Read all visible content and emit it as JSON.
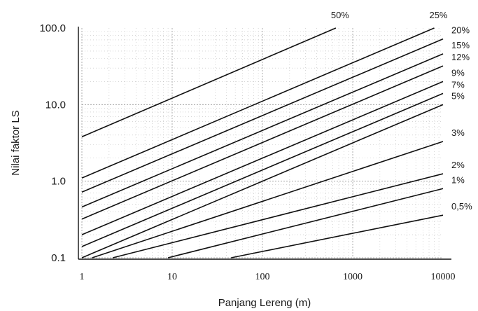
{
  "chart_data": {
    "type": "line",
    "xlabel": "Panjang Lereng (m)",
    "ylabel": "Nilai faktor LS",
    "x_scale": "log",
    "y_scale": "log",
    "xlim": [
      1,
      10000
    ],
    "ylim": [
      0.1,
      100
    ],
    "x_ticks": [
      "1",
      "10",
      "100",
      "1000",
      "10000"
    ],
    "y_ticks": [
      "0.1",
      "1.0",
      "10.0",
      "100.0"
    ],
    "grid": true,
    "series": [
      {
        "name": "50%",
        "x": [
          1,
          650
        ],
        "y": [
          3.8,
          100
        ]
      },
      {
        "name": "25%",
        "x": [
          1,
          8000
        ],
        "y": [
          1.1,
          100
        ]
      },
      {
        "name": "20%",
        "x": [
          1,
          10000
        ],
        "y": [
          0.72,
          72
        ]
      },
      {
        "name": "15%",
        "x": [
          1,
          10000
        ],
        "y": [
          0.46,
          46
        ]
      },
      {
        "name": "12%",
        "x": [
          1,
          10000
        ],
        "y": [
          0.32,
          32
        ]
      },
      {
        "name": "9%",
        "x": [
          1,
          10000
        ],
        "y": [
          0.2,
          20
        ]
      },
      {
        "name": "7%",
        "x": [
          1,
          10000
        ],
        "y": [
          0.14,
          14
        ]
      },
      {
        "name": "5%",
        "x": [
          1,
          10000
        ],
        "y": [
          0.1,
          10
        ]
      },
      {
        "name": "3%",
        "x": [
          1.3,
          10000
        ],
        "y": [
          0.1,
          3.3
        ]
      },
      {
        "name": "2%",
        "x": [
          2.2,
          10000
        ],
        "y": [
          0.1,
          1.25
        ]
      },
      {
        "name": "1%",
        "x": [
          9,
          10000
        ],
        "y": [
          0.1,
          0.8
        ]
      },
      {
        "name": "0,5%",
        "x": [
          45,
          10000
        ],
        "y": [
          0.1,
          0.36
        ]
      }
    ]
  }
}
